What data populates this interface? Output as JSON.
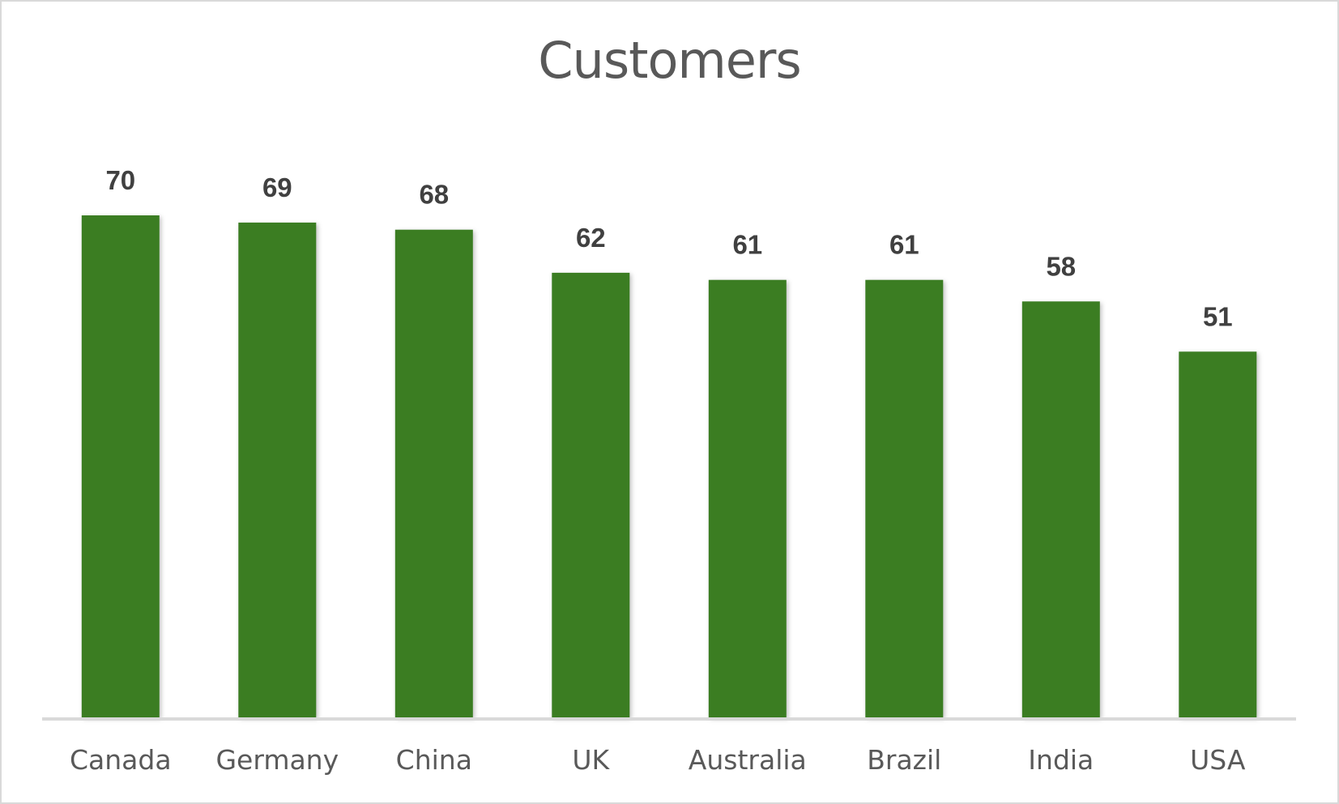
{
  "chart_data": {
    "type": "bar",
    "title": "Customers",
    "xlabel": "",
    "ylabel": "",
    "categories": [
      "Canada",
      "Germany",
      "China",
      "UK",
      "Australia",
      "Brazil",
      "India",
      "USA"
    ],
    "values": [
      70,
      69,
      68,
      62,
      61,
      61,
      58,
      51
    ],
    "ylim": [
      0,
      70
    ],
    "grid": false,
    "legend": "none",
    "data_labels": true,
    "colors": {
      "bar": "#3b7d23",
      "axis": "#d9d9d9",
      "title": "#595959",
      "data_label": "#404040",
      "tick_label": "#595959"
    }
  }
}
